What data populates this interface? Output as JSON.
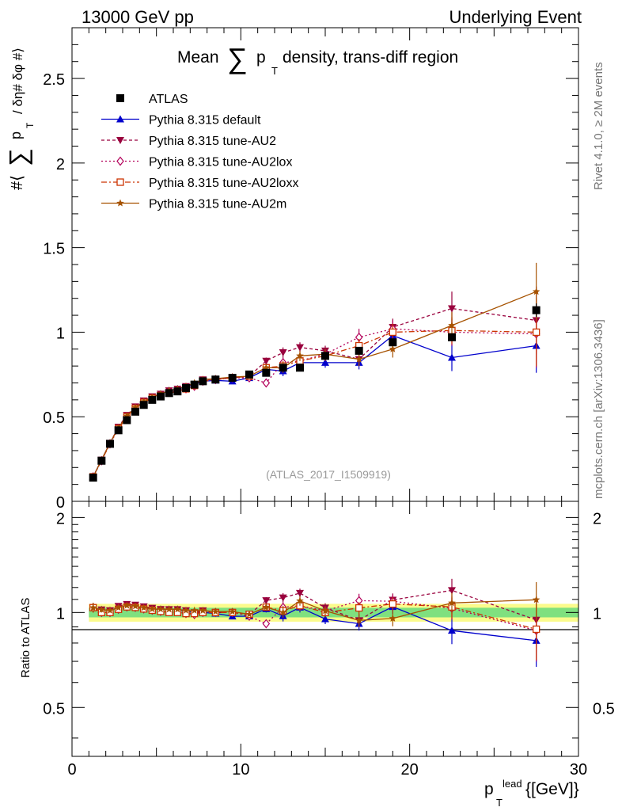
{
  "header": {
    "left": "13000 GeV pp",
    "right": "Underlying Event"
  },
  "side_labels": {
    "rivet": "Rivet 4.1.0, ≥ 2M events",
    "mcplots": "mcplots.cern.ch [arXiv:1306.3436]"
  },
  "colors": {
    "data": "#000000",
    "default": "#0000cc",
    "au2": "#99003d",
    "au2lox": "#b3005a",
    "au2loxx": "#cc3300",
    "au2m": "#a65200",
    "band_inner": "#7fe07f",
    "band_outer": "#fbfb8c"
  },
  "chart_data": [
    {
      "type": "line",
      "panel": "main",
      "title_prefix": "Mean",
      "title_sum": "∑",
      "title_p": "p",
      "title_sub": "T",
      "title_suffix": "density, trans-diff region",
      "ylabel_prefix": "#⟨",
      "ylabel_sum": "∑",
      "ylabel_p": "p",
      "ylabel_sub": "T",
      "ylabel_suffix": "/ δη# δφ #⟩",
      "watermark": "(ATLAS_2017_I1509919)",
      "xlim": [
        0,
        30
      ],
      "ylim": [
        0,
        2.8
      ],
      "yticks": [
        "0",
        "0.5",
        "1",
        "1.5",
        "2",
        "2.5"
      ],
      "x": [
        1.25,
        1.75,
        2.25,
        2.75,
        3.25,
        3.75,
        4.25,
        4.75,
        5.25,
        5.75,
        6.25,
        6.75,
        7.25,
        7.75,
        8.5,
        9.5,
        10.5,
        11.5,
        12.5,
        13.5,
        15,
        17,
        19,
        22.5,
        27.5
      ],
      "series": [
        {
          "name": "ATLAS",
          "key": "data",
          "values": [
            0.14,
            0.24,
            0.34,
            0.42,
            0.48,
            0.53,
            0.57,
            0.6,
            0.62,
            0.64,
            0.65,
            0.67,
            0.69,
            0.71,
            0.72,
            0.73,
            0.75,
            0.76,
            0.79,
            0.79,
            0.86,
            0.89,
            0.94,
            0.97,
            1.13
          ],
          "errors": [
            0.005,
            0.005,
            0.005,
            0.005,
            0.005,
            0.005,
            0.005,
            0.005,
            0.005,
            0.005,
            0.005,
            0.005,
            0.005,
            0.005,
            0.01,
            0.01,
            0.01,
            0.01,
            0.01,
            0.01,
            0.01,
            0.02,
            0.02,
            0.02,
            0.04
          ]
        },
        {
          "name": "Pythia 8.315 default",
          "key": "default",
          "values": [
            0.145,
            0.245,
            0.345,
            0.435,
            0.505,
            0.555,
            0.59,
            0.615,
            0.635,
            0.655,
            0.665,
            0.675,
            0.69,
            0.71,
            0.715,
            0.71,
            0.73,
            0.78,
            0.77,
            0.82,
            0.82,
            0.82,
            0.98,
            0.85,
            0.92
          ],
          "errors": [
            0.005,
            0.005,
            0.005,
            0.005,
            0.005,
            0.005,
            0.005,
            0.005,
            0.005,
            0.005,
            0.005,
            0.005,
            0.005,
            0.005,
            0.01,
            0.01,
            0.01,
            0.02,
            0.03,
            0.03,
            0.03,
            0.04,
            0.05,
            0.08,
            0.16
          ]
        },
        {
          "name": "Pythia 8.315 tune-AU2",
          "key": "au2",
          "values": [
            0.145,
            0.245,
            0.345,
            0.44,
            0.51,
            0.56,
            0.595,
            0.62,
            0.635,
            0.655,
            0.665,
            0.68,
            0.69,
            0.72,
            0.72,
            0.73,
            0.74,
            0.83,
            0.88,
            0.91,
            0.89,
            0.84,
            1.03,
            1.14,
            1.07
          ],
          "errors": [
            0.005,
            0.005,
            0.005,
            0.005,
            0.005,
            0.005,
            0.005,
            0.005,
            0.005,
            0.005,
            0.005,
            0.005,
            0.005,
            0.005,
            0.01,
            0.01,
            0.01,
            0.02,
            0.03,
            0.03,
            0.03,
            0.04,
            0.05,
            0.1,
            0.2
          ]
        },
        {
          "name": "Pythia 8.315 tune-AU2lox",
          "key": "au2lox",
          "values": [
            0.145,
            0.24,
            0.34,
            0.43,
            0.5,
            0.55,
            0.585,
            0.61,
            0.625,
            0.645,
            0.655,
            0.665,
            0.68,
            0.71,
            0.72,
            0.73,
            0.73,
            0.7,
            0.82,
            0.83,
            0.87,
            0.97,
            1.02,
            1.0,
            0.99
          ],
          "errors": [
            0.005,
            0.005,
            0.005,
            0.005,
            0.005,
            0.005,
            0.005,
            0.005,
            0.005,
            0.005,
            0.005,
            0.005,
            0.005,
            0.005,
            0.01,
            0.01,
            0.01,
            0.02,
            0.03,
            0.03,
            0.03,
            0.05,
            0.05,
            0.08,
            0.2
          ]
        },
        {
          "name": "Pythia 8.315 tune-AU2loxx",
          "key": "au2loxx",
          "values": [
            0.145,
            0.24,
            0.34,
            0.43,
            0.5,
            0.55,
            0.585,
            0.61,
            0.625,
            0.64,
            0.65,
            0.665,
            0.685,
            0.71,
            0.72,
            0.73,
            0.74,
            0.79,
            0.8,
            0.83,
            0.86,
            0.92,
            1.0,
            1.01,
            1.0
          ],
          "errors": [
            0.005,
            0.005,
            0.005,
            0.005,
            0.005,
            0.005,
            0.005,
            0.005,
            0.005,
            0.005,
            0.005,
            0.005,
            0.005,
            0.005,
            0.01,
            0.01,
            0.01,
            0.02,
            0.03,
            0.03,
            0.03,
            0.04,
            0.05,
            0.08,
            0.2
          ]
        },
        {
          "name": "Pythia 8.315 tune-AU2m",
          "key": "au2m",
          "values": [
            0.145,
            0.245,
            0.345,
            0.435,
            0.505,
            0.555,
            0.59,
            0.615,
            0.635,
            0.655,
            0.665,
            0.68,
            0.7,
            0.72,
            0.725,
            0.735,
            0.74,
            0.79,
            0.79,
            0.86,
            0.87,
            0.84,
            0.9,
            1.04,
            1.24
          ],
          "errors": [
            0.005,
            0.005,
            0.005,
            0.005,
            0.005,
            0.005,
            0.005,
            0.005,
            0.005,
            0.005,
            0.005,
            0.005,
            0.005,
            0.005,
            0.01,
            0.01,
            0.01,
            0.02,
            0.03,
            0.03,
            0.03,
            0.04,
            0.05,
            0.08,
            0.17
          ]
        }
      ]
    },
    {
      "type": "line",
      "panel": "ratio",
      "ylabel": "Ratio to ATLAS",
      "xlabel_p": "p",
      "xlabel_sub": "T",
      "xlabel_sup": "lead",
      "xlabel_unit": "{[GeV]}",
      "xlim": [
        0,
        30
      ],
      "ylim": [
        0.35,
        2.25
      ],
      "xticks": [
        "0",
        "10",
        "20",
        "30"
      ],
      "yticks": [
        "0.5",
        "1",
        "2"
      ],
      "band_inner": [
        0.965,
        1.035
      ],
      "band_outer": [
        0.935,
        1.065
      ]
    }
  ]
}
